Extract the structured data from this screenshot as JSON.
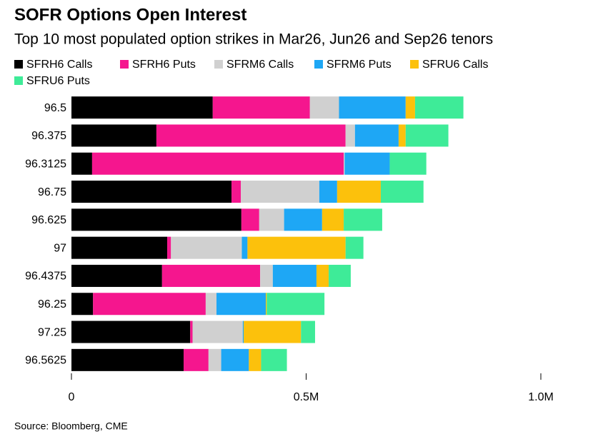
{
  "chart_data": {
    "type": "stacked_barh",
    "title": "SOFR Options Open Interest",
    "subtitle": "Top 10 most populated option strikes in Mar26, Jun26 and Sep26 tenors",
    "source": "Source: Bloomberg, CME",
    "categories": [
      "96.5",
      "96.375",
      "96.3125",
      "96.75",
      "96.625",
      "97",
      "96.4375",
      "96.25",
      "97.25",
      "96.5625"
    ],
    "series": [
      {
        "name": "SFRH6 Calls",
        "color": "#000000",
        "values": [
          301000,
          181000,
          44000,
          341000,
          362000,
          204000,
          193000,
          46000,
          253000,
          239000
        ]
      },
      {
        "name": "SFRH6 Puts",
        "color": "#f5168e",
        "values": [
          207000,
          403000,
          536000,
          20000,
          38000,
          8000,
          209000,
          240000,
          5000,
          53000
        ]
      },
      {
        "name": "SFRM6 Calls",
        "color": "#d0d0d0",
        "values": [
          62000,
          20000,
          2000,
          167000,
          53000,
          151000,
          27000,
          23000,
          107000,
          27000
        ]
      },
      {
        "name": "SFRM6 Puts",
        "color": "#1ea7f5",
        "values": [
          142000,
          93000,
          96000,
          38000,
          81000,
          12000,
          93000,
          105000,
          2000,
          59000
        ]
      },
      {
        "name": "SFRU6 Calls",
        "color": "#fcc10c",
        "values": [
          20000,
          15000,
          0,
          93000,
          46000,
          209000,
          26000,
          2000,
          122000,
          26000
        ]
      },
      {
        "name": "SFRU6 Puts",
        "color": "#3eeb98",
        "values": [
          103000,
          91000,
          78000,
          91000,
          82000,
          38000,
          47000,
          123000,
          30000,
          55000
        ]
      }
    ],
    "xlim": [
      0,
      1070000
    ],
    "xticks": [
      0,
      {
        "value": 500000,
        "label": "0.5M"
      },
      {
        "value": 1000000,
        "label": "1.0M"
      }
    ],
    "grid": false
  }
}
